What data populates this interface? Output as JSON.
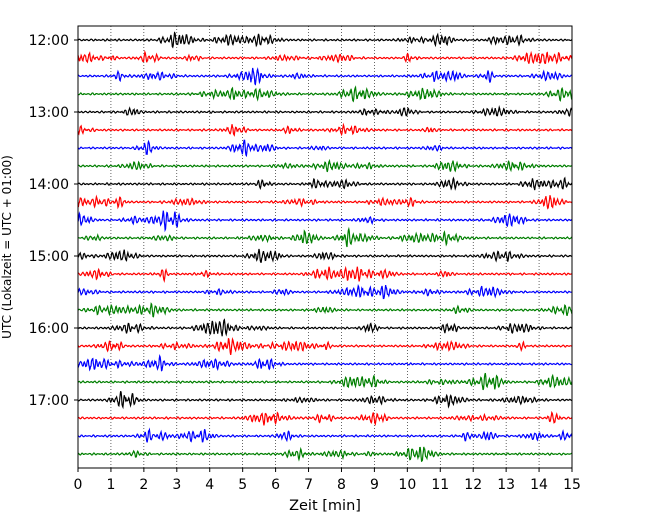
{
  "chart_data": {
    "type": "line",
    "xlabel": "Zeit  [min]",
    "ylabel": "UTC (Lokalzeit = UTC + 01:00)",
    "xlim": [
      0,
      15
    ],
    "x_ticks": [
      "0",
      "1",
      "2",
      "3",
      "4",
      "5",
      "6",
      "7",
      "8",
      "9",
      "10",
      "11",
      "12",
      "13",
      "14",
      "15"
    ],
    "y_ticks": [
      "12:00",
      "13:00",
      "14:00",
      "15:00",
      "16:00",
      "17:00"
    ],
    "x_grid": "vertical dotted",
    "trace_minutes_per_line": 15,
    "trace_start": "12:00",
    "trace_end": "17:45",
    "trace_count": 24,
    "colors": [
      "#000000",
      "#ff0000",
      "#0000ff",
      "#007f00"
    ]
  }
}
